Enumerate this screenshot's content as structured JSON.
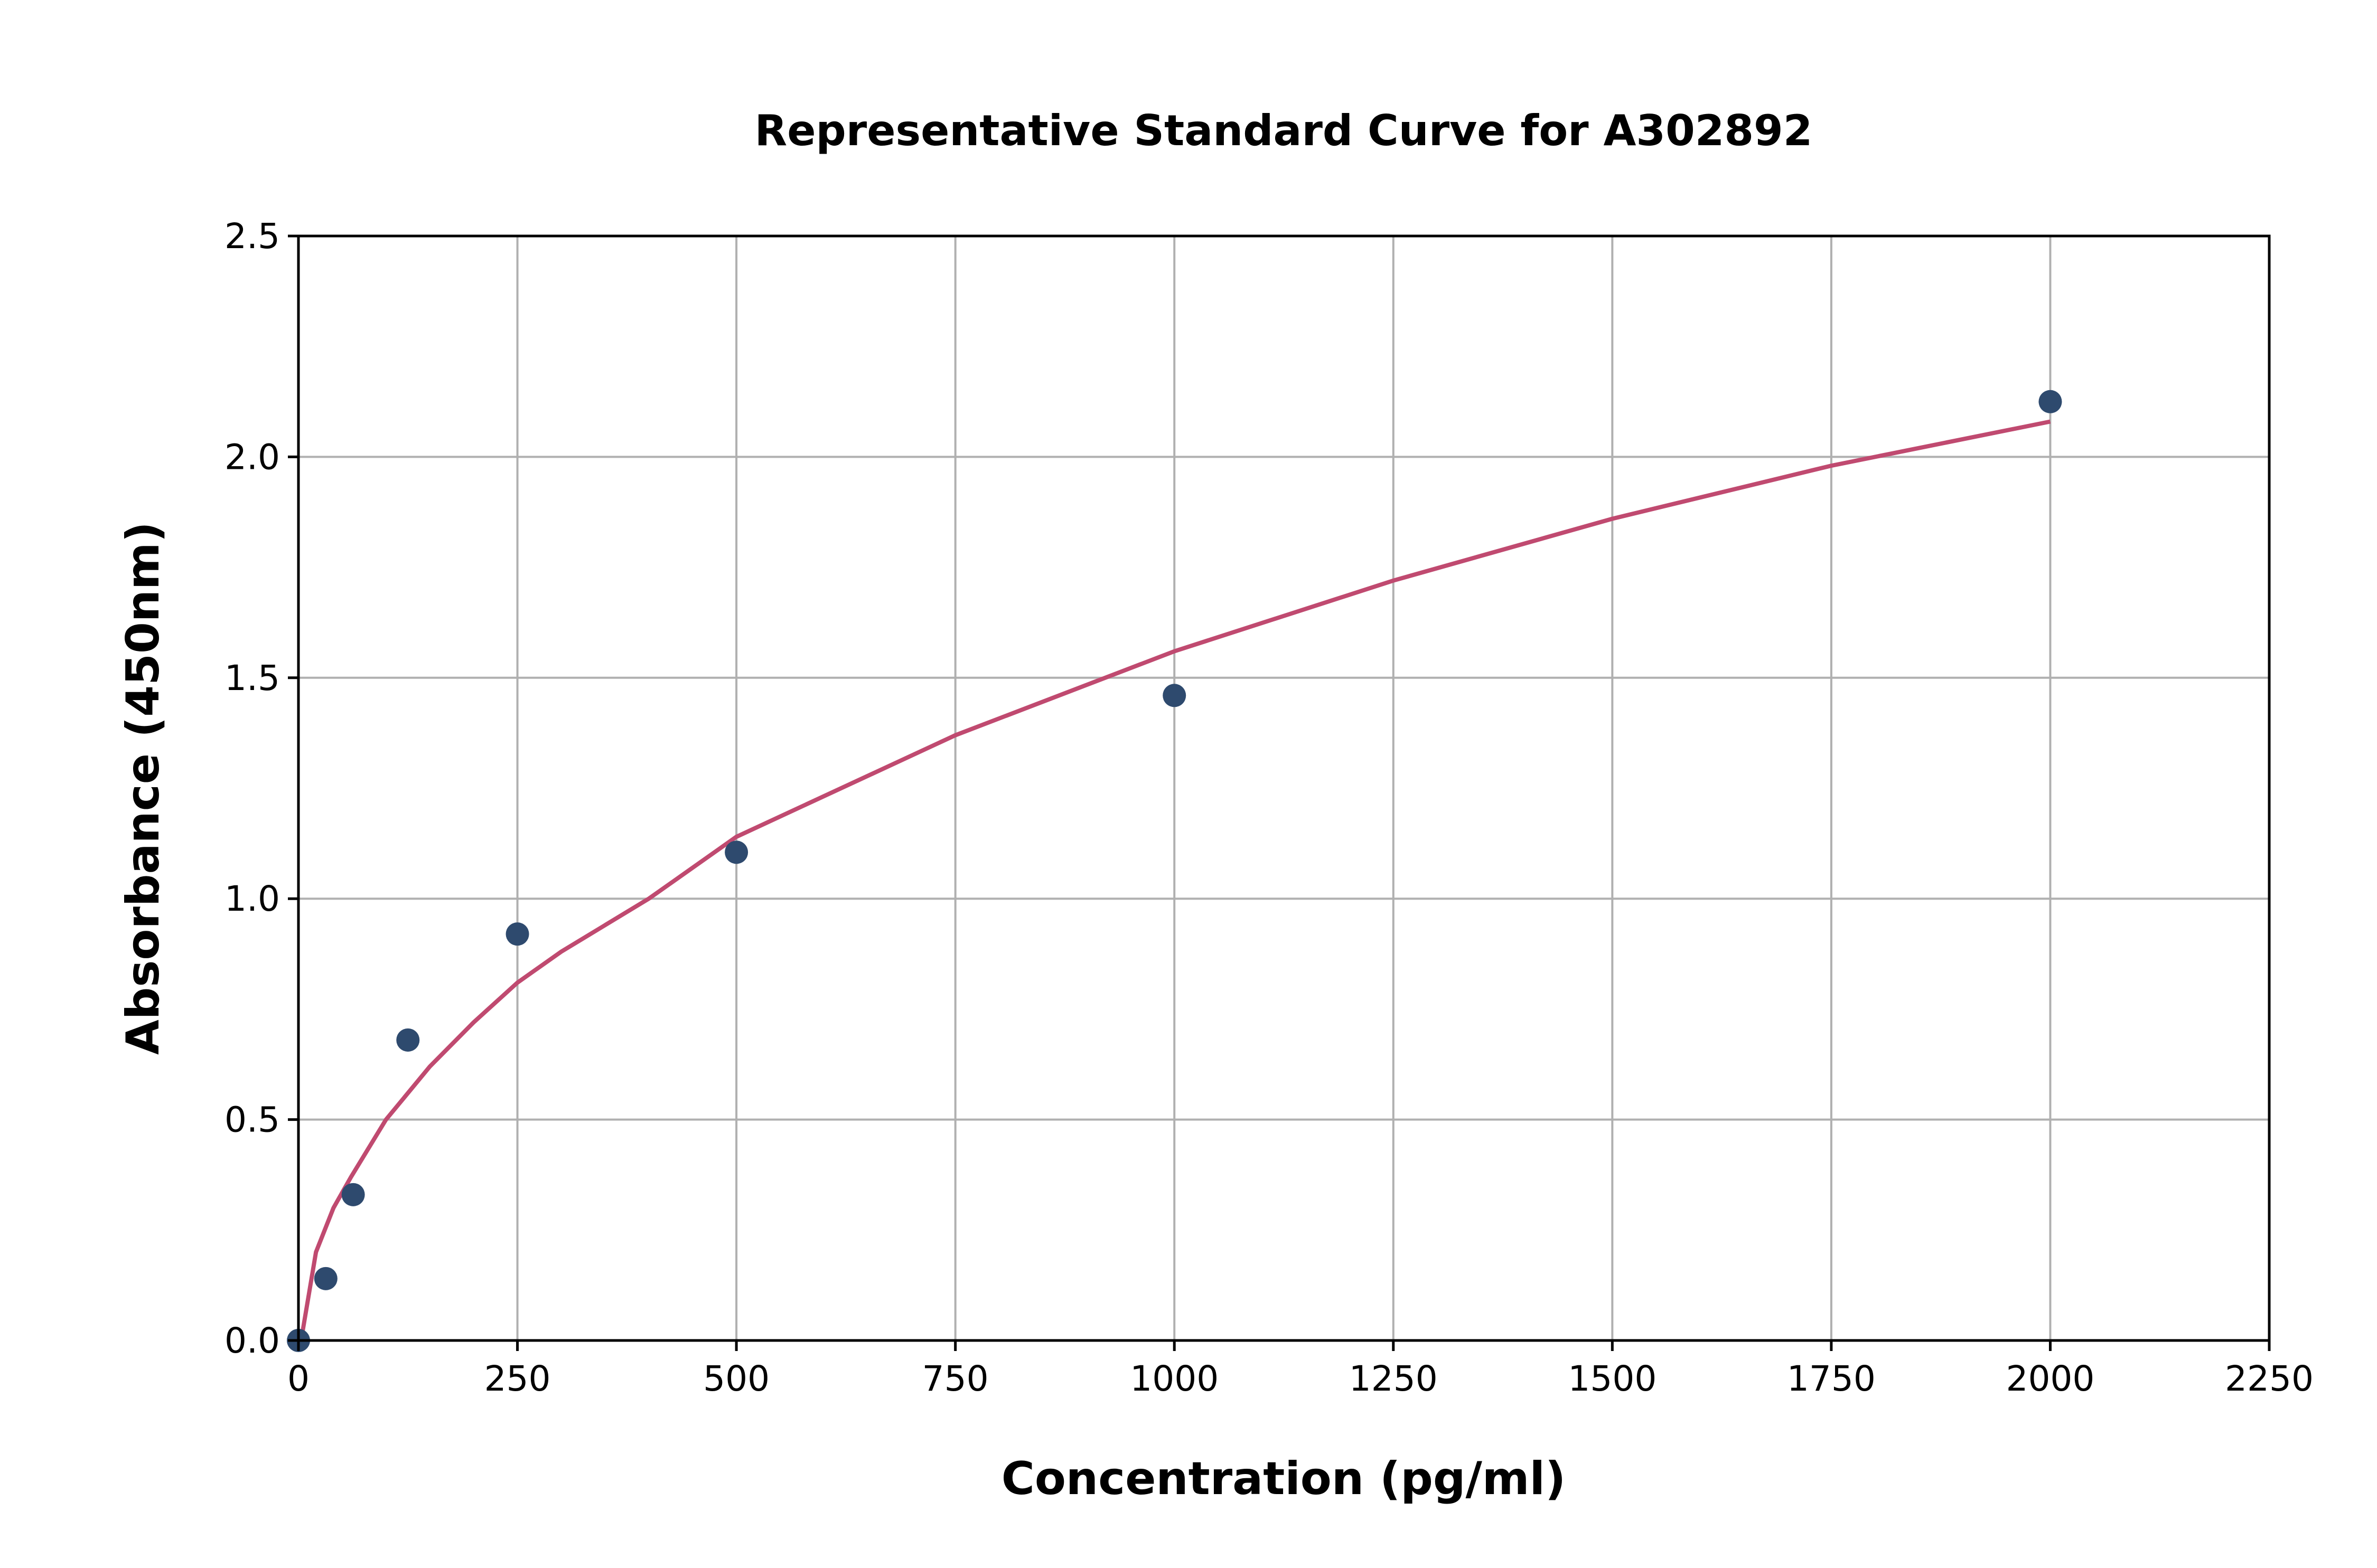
{
  "chart_data": {
    "type": "scatter",
    "title": "Representative Standard Curve for A302892",
    "xlabel": "Concentration (pg/ml)",
    "ylabel": "Absorbance (450nm)",
    "xlim": [
      0,
      2250
    ],
    "ylim": [
      0,
      2.5
    ],
    "xticks": [
      "0",
      "250",
      "500",
      "750",
      "1000",
      "1250",
      "1500",
      "1750",
      "2000",
      "2250"
    ],
    "yticks": [
      "0.0",
      "0.5",
      "1.0",
      "1.5",
      "2.0",
      "2.5"
    ],
    "grid": true,
    "points": {
      "x": [
        0,
        31.25,
        62.5,
        125,
        250,
        500,
        1000,
        2000
      ],
      "y": [
        0.0,
        0.14,
        0.33,
        0.68,
        0.92,
        1.105,
        1.46,
        2.125
      ],
      "color": "#2e4a6e"
    },
    "fit_curve": {
      "x": [
        3,
        20,
        40,
        60,
        100,
        150,
        200,
        250,
        300,
        400,
        500,
        750,
        1000,
        1250,
        1500,
        1750,
        2000
      ],
      "y": [
        0.0,
        0.2,
        0.3,
        0.37,
        0.5,
        0.62,
        0.72,
        0.81,
        0.88,
        1.0,
        1.14,
        1.37,
        1.56,
        1.72,
        1.86,
        1.98,
        2.08
      ],
      "color": "#c04a70"
    }
  }
}
